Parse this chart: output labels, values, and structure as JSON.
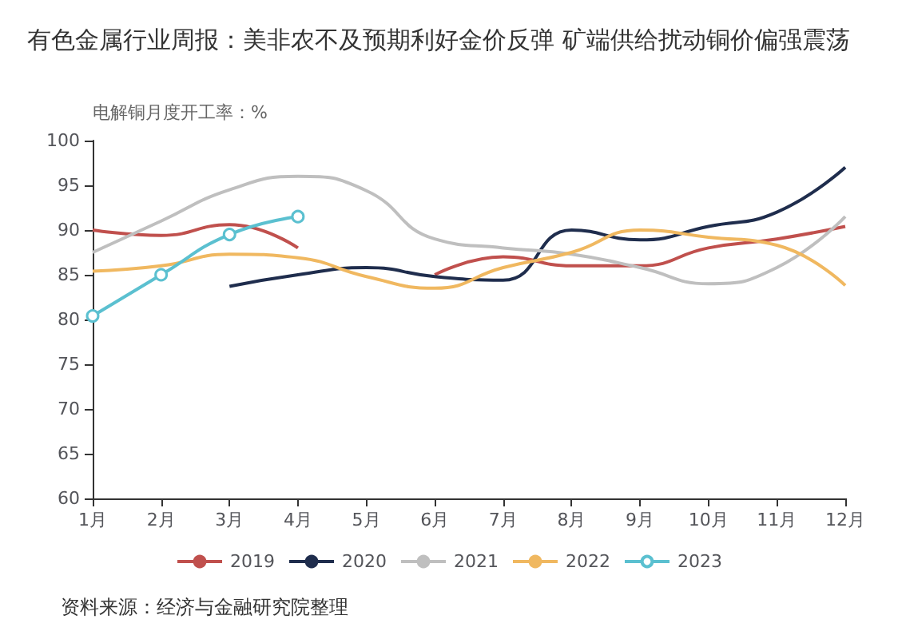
{
  "chart_data": {
    "type": "line",
    "title": "有色金属行业周报：美非农不及预期利好金价反弹 矿端供给扰动铜价偏强震荡",
    "ylabel": "电解铜月度开工率：%",
    "categories": [
      "1月",
      "2月",
      "3月",
      "4月",
      "5月",
      "6月",
      "7月",
      "8月",
      "9月",
      "10月",
      "11月",
      "12月"
    ],
    "series": [
      {
        "name": "2019",
        "color": "#c0504d",
        "marker": "none",
        "values": [
          90,
          89.4,
          90.6,
          88,
          null,
          85,
          87,
          86,
          86,
          88,
          89,
          90.4
        ]
      },
      {
        "name": "2020",
        "color": "#1f2d4d",
        "marker": "none",
        "values": [
          null,
          null,
          83.7,
          85,
          85.8,
          84.8,
          84.4,
          90,
          88.9,
          90.4,
          92,
          97
        ]
      },
      {
        "name": "2021",
        "color": "#bfbfbf",
        "marker": "none",
        "values": [
          87.5,
          91,
          94.5,
          96,
          94.4,
          89,
          88,
          87.3,
          85.8,
          84,
          85.8,
          91.5
        ]
      },
      {
        "name": "2022",
        "color": "#f0b860",
        "marker": "none",
        "values": [
          85.4,
          86,
          87.3,
          86.9,
          84.8,
          83.5,
          85.8,
          87.5,
          90,
          89.2,
          88.3,
          83.8
        ]
      },
      {
        "name": "2023",
        "color": "#5bc0d0",
        "marker": "circle",
        "values": [
          80.4,
          85,
          89.5,
          91.5,
          null,
          null,
          null,
          null,
          null,
          null,
          null,
          null
        ]
      }
    ],
    "ylim": [
      60,
      100
    ],
    "yticks": [
      60,
      65,
      70,
      75,
      80,
      85,
      90,
      95,
      100
    ],
    "grid": false,
    "legend": "bottom",
    "annotations": [
      "资料来源：经济与金融研究院整理"
    ]
  }
}
